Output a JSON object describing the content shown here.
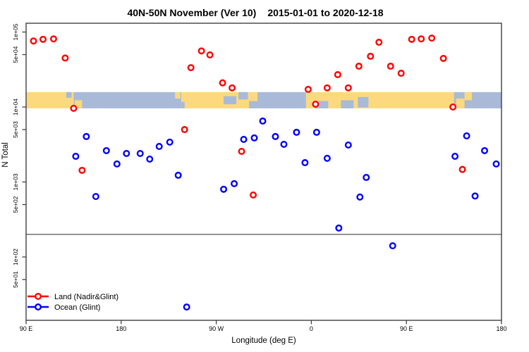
{
  "title": {
    "part1": "40N-50N November (Ver 10)",
    "part2": "2015-01-01 to 2020-12-18"
  },
  "axes": {
    "y_label": "N Total",
    "x_label": "Longitude (deg E)",
    "y_ticks": [
      {
        "label": "1e+05",
        "value": 100000
      },
      {
        "label": "5e+04",
        "value": 50000
      },
      {
        "label": "1e+04",
        "value": 10000
      },
      {
        "label": "5e+03",
        "value": 5000
      },
      {
        "label": "1e+03",
        "value": 1000
      },
      {
        "label": "5e+02",
        "value": 500
      },
      {
        "label": "1e+02",
        "value": 100
      },
      {
        "label": "5e+01",
        "value": 50
      }
    ],
    "x_ticks": [
      {
        "label": "90 E",
        "lon": 90
      },
      {
        "label": "180",
        "lon": 180
      },
      {
        "label": "90 W",
        "lon": 270
      },
      {
        "label": "0",
        "lon": 360
      },
      {
        "label": "90 E",
        "lon": 450
      },
      {
        "label": "180",
        "lon": 540
      }
    ]
  },
  "legend": [
    {
      "label": "Land (Nadir&Glint)",
      "color": "#ff0000"
    },
    {
      "label": "Ocean (Glint)",
      "color": "#0000ff"
    }
  ],
  "colors": {
    "land_series": "#ff0000",
    "ocean_series": "#0000ff",
    "map_land": "#FCD97E",
    "map_ocean": "#A8BAD8",
    "axis": "#404040",
    "point_fill": "#ffffff"
  },
  "chart_data": {
    "type": "scatter",
    "title": "40N-50N November (Ver 10)   2015-01-01 to 2020-12-18",
    "xlabel": "Longitude (deg E)",
    "ylabel": "N Total",
    "x_axis": {
      "scale": "linear",
      "lon_continuous_range": [
        90,
        540
      ],
      "note": "longitude wraps: 90E-180-90W-0-90E-180"
    },
    "y_axis": {
      "scale": "log10",
      "range": [
        14,
        131000
      ]
    },
    "reference_line": {
      "n": 200
    },
    "map_band": {
      "n_top": 15800,
      "n_bottom": 9600,
      "segments": [
        {
          "type": "land",
          "from": 90,
          "to": 135
        },
        {
          "type": "ocean",
          "from": 135,
          "to": 237
        },
        {
          "type": "land",
          "from": 237,
          "to": 309
        },
        {
          "type": "ocean",
          "from": 309,
          "to": 355
        },
        {
          "type": "land",
          "from": 355,
          "to": 495
        },
        {
          "type": "ocean",
          "from": 495,
          "to": 540
        }
      ],
      "patches": [
        {
          "type": "ocean",
          "from": 128,
          "to": 133,
          "top": 0,
          "bottom": 0.35
        },
        {
          "type": "land",
          "from": 136,
          "to": 143,
          "top": 0.5,
          "bottom": 1
        },
        {
          "type": "land",
          "from": 231,
          "to": 236,
          "top": 0,
          "bottom": 0.4
        },
        {
          "type": "ocean",
          "from": 237,
          "to": 240,
          "top": 0.6,
          "bottom": 1
        },
        {
          "type": "ocean",
          "from": 277,
          "to": 289,
          "top": 0.25,
          "bottom": 0.75
        },
        {
          "type": "ocean",
          "from": 291,
          "to": 300,
          "top": 0,
          "bottom": 0.45
        },
        {
          "type": "ocean",
          "from": 301,
          "to": 309,
          "top": 0.55,
          "bottom": 1
        },
        {
          "type": "ocean",
          "from": 363,
          "to": 376,
          "top": 0.55,
          "bottom": 1
        },
        {
          "type": "ocean",
          "from": 388,
          "to": 400,
          "top": 0.5,
          "bottom": 1
        },
        {
          "type": "ocean",
          "from": 404,
          "to": 414,
          "top": 0.3,
          "bottom": 0.95
        },
        {
          "type": "land",
          "from": 497,
          "to": 505,
          "top": 0.4,
          "bottom": 1
        },
        {
          "type": "land",
          "from": 505,
          "to": 512,
          "top": 0,
          "bottom": 0.5
        }
      ]
    },
    "series": [
      {
        "name": "Land (Nadir&Glint)",
        "color": "#ff0000",
        "points": [
          {
            "lon": 97,
            "n": 76000
          },
          {
            "lon": 106,
            "n": 80000
          },
          {
            "lon": 116,
            "n": 81000
          },
          {
            "lon": 127,
            "n": 45000
          },
          {
            "lon": 135,
            "n": 9600
          },
          {
            "lon": 143,
            "n": 1430
          },
          {
            "lon": 240,
            "n": 5000
          },
          {
            "lon": 246,
            "n": 33500
          },
          {
            "lon": 256,
            "n": 56000
          },
          {
            "lon": 264,
            "n": 49500
          },
          {
            "lon": 276,
            "n": 21000
          },
          {
            "lon": 285,
            "n": 18000
          },
          {
            "lon": 294,
            "n": 2560
          },
          {
            "lon": 305,
            "n": 670
          },
          {
            "lon": 357,
            "n": 17200
          },
          {
            "lon": 364,
            "n": 10900
          },
          {
            "lon": 375,
            "n": 18000
          },
          {
            "lon": 385,
            "n": 27000
          },
          {
            "lon": 395,
            "n": 18000
          },
          {
            "lon": 405,
            "n": 35000
          },
          {
            "lon": 416,
            "n": 47500
          },
          {
            "lon": 424,
            "n": 73000
          },
          {
            "lon": 435,
            "n": 35000
          },
          {
            "lon": 445,
            "n": 28200
          },
          {
            "lon": 455,
            "n": 80000
          },
          {
            "lon": 464,
            "n": 81000
          },
          {
            "lon": 474,
            "n": 83000
          },
          {
            "lon": 485,
            "n": 44500
          },
          {
            "lon": 494,
            "n": 10000
          },
          {
            "lon": 503,
            "n": 1470
          }
        ]
      },
      {
        "name": "Ocean (Glint)",
        "color": "#0000ff",
        "points": [
          {
            "lon": 137,
            "n": 2200
          },
          {
            "lon": 147,
            "n": 4040
          },
          {
            "lon": 156,
            "n": 640
          },
          {
            "lon": 166,
            "n": 2620
          },
          {
            "lon": 176,
            "n": 1740
          },
          {
            "lon": 185,
            "n": 2400
          },
          {
            "lon": 198,
            "n": 2400
          },
          {
            "lon": 207,
            "n": 2020
          },
          {
            "lon": 216,
            "n": 2980
          },
          {
            "lon": 226,
            "n": 3400
          },
          {
            "lon": 234,
            "n": 1230
          },
          {
            "lon": 242,
            "n": 21.5
          },
          {
            "lon": 277,
            "n": 800
          },
          {
            "lon": 287,
            "n": 950
          },
          {
            "lon": 296,
            "n": 3700
          },
          {
            "lon": 306,
            "n": 3870
          },
          {
            "lon": 314,
            "n": 6500
          },
          {
            "lon": 326,
            "n": 4040
          },
          {
            "lon": 334,
            "n": 3180
          },
          {
            "lon": 346,
            "n": 4600
          },
          {
            "lon": 354,
            "n": 1810
          },
          {
            "lon": 365,
            "n": 4600
          },
          {
            "lon": 375,
            "n": 2070
          },
          {
            "lon": 386,
            "n": 243
          },
          {
            "lon": 395,
            "n": 3110
          },
          {
            "lon": 406,
            "n": 630
          },
          {
            "lon": 412,
            "n": 1150
          },
          {
            "lon": 437,
            "n": 141
          },
          {
            "lon": 496,
            "n": 2200
          },
          {
            "lon": 507,
            "n": 4120
          },
          {
            "lon": 515,
            "n": 650
          },
          {
            "lon": 524,
            "n": 2620
          },
          {
            "lon": 535,
            "n": 1740
          }
        ]
      }
    ]
  }
}
